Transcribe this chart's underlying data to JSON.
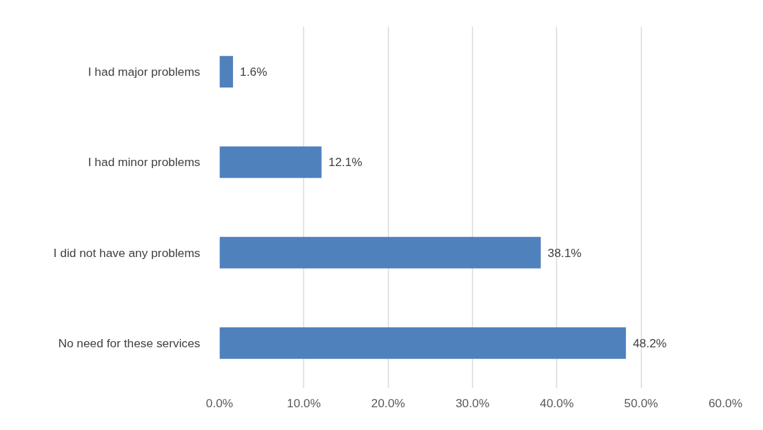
{
  "chart_data": {
    "type": "bar",
    "orientation": "horizontal",
    "categories": [
      "I had major problems",
      "I had minor problems",
      "I did not have any problems",
      "No need for these services"
    ],
    "values": [
      1.6,
      12.1,
      38.1,
      48.2
    ],
    "value_labels": [
      "1.6%",
      "12.1%",
      "38.1%",
      "48.2%"
    ],
    "color": "#4f81bd",
    "xlim": [
      0,
      60
    ],
    "xticks": [
      {
        "value": 0,
        "label": "0.0%"
      },
      {
        "value": 10,
        "label": "10.0%"
      },
      {
        "value": 20,
        "label": "20.0%"
      },
      {
        "value": 30,
        "label": "30.0%"
      },
      {
        "value": 40,
        "label": "40.0%"
      },
      {
        "value": 50,
        "label": "50.0%"
      },
      {
        "value": 60,
        "label": "60.0%"
      }
    ],
    "grid": "x"
  }
}
